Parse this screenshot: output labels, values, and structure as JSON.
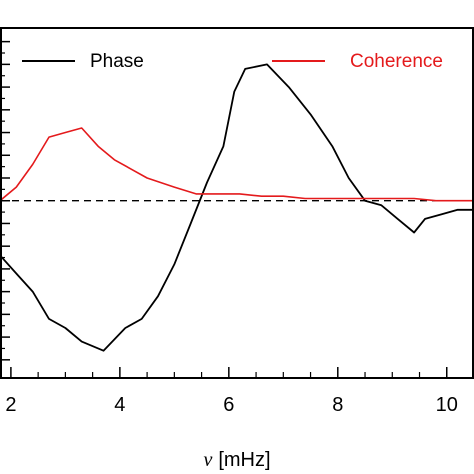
{
  "chart_data": {
    "type": "line",
    "title": "",
    "xlabel_symbol": "ν",
    "xlabel_unit": "[mHz]",
    "xlim": [
      1.8,
      10.5
    ],
    "x_ticks": [
      2,
      4,
      6,
      8,
      10
    ],
    "x_tick_labels": [
      "2",
      "4",
      "6",
      "8",
      "10"
    ],
    "ylim": [
      -3.9,
      3.8
    ],
    "y_major_ticks": [
      -3.5,
      -3,
      -2.5,
      -2,
      -1.5,
      -1,
      -0.5,
      0,
      0.5,
      1,
      1.5,
      2,
      2.5,
      3,
      3.5
    ],
    "y_minor_ticks": [
      -3.25,
      -2.75,
      -2.25,
      -1.75,
      -1.25,
      -0.75,
      -0.25,
      0.25,
      0.75,
      1.25,
      1.75,
      2.25,
      2.75,
      3.25
    ],
    "reference_line": 0,
    "legend_position": "top",
    "series": [
      {
        "name": "Phase",
        "color": "#000000",
        "x": [
          1.8,
          2.1,
          2.4,
          2.7,
          3.0,
          3.3,
          3.7,
          4.1,
          4.4,
          4.7,
          5.0,
          5.3,
          5.6,
          5.9,
          6.1,
          6.3,
          6.7,
          7.1,
          7.5,
          7.9,
          8.2,
          8.5,
          8.8,
          9.1,
          9.4,
          9.6,
          9.9,
          10.2,
          10.5
        ],
        "y": [
          -1.2,
          -1.6,
          -2.0,
          -2.6,
          -2.8,
          -3.1,
          -3.3,
          -2.8,
          -2.6,
          -2.1,
          -1.4,
          -0.5,
          0.4,
          1.2,
          2.4,
          2.9,
          3.0,
          2.5,
          1.9,
          1.2,
          0.5,
          0.0,
          -0.1,
          -0.4,
          -0.7,
          -0.4,
          -0.3,
          -0.2,
          -0.2
        ]
      },
      {
        "name": "Coherence",
        "color": "#e41a1c",
        "x": [
          1.8,
          2.1,
          2.4,
          2.7,
          3.0,
          3.3,
          3.6,
          3.9,
          4.2,
          4.5,
          5.0,
          5.4,
          5.8,
          6.2,
          6.6,
          7.0,
          7.4,
          7.8,
          8.2,
          8.6,
          9.0,
          9.4,
          9.8,
          10.2,
          10.5
        ],
        "y": [
          0.0,
          0.3,
          0.8,
          1.4,
          1.5,
          1.6,
          1.2,
          0.9,
          0.7,
          0.5,
          0.3,
          0.15,
          0.15,
          0.15,
          0.1,
          0.1,
          0.05,
          0.05,
          0.05,
          0.05,
          0.05,
          0.05,
          0.0,
          0.0,
          0.0
        ]
      }
    ]
  }
}
